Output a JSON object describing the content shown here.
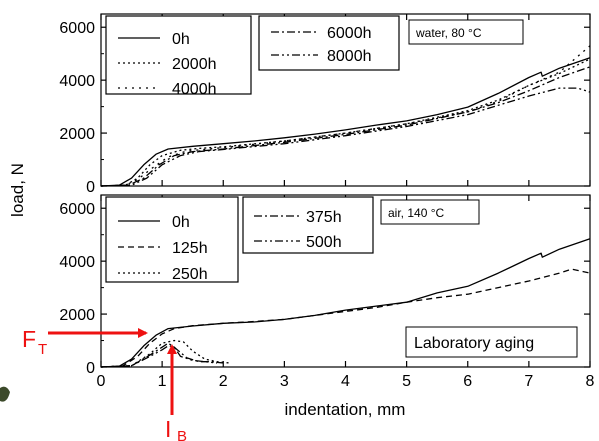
{
  "chart_data": [
    {
      "type": "line",
      "panel": "top",
      "xlim": [
        0,
        8
      ],
      "ylim": [
        0,
        6500
      ],
      "yticks": [
        0,
        2000,
        4000,
        6000
      ],
      "grid": false,
      "condition_label": "water, 80 °C",
      "legend_primary": [
        "0h",
        "2000h",
        "4000h"
      ],
      "legend_secondary": [
        "6000h",
        "8000h"
      ],
      "series": [
        {
          "name": "0h",
          "style": "solid",
          "x": [
            0,
            0.3,
            0.5,
            0.7,
            0.9,
            1.1,
            1.5,
            2,
            2.5,
            3,
            3.5,
            4,
            4.5,
            5,
            5.5,
            6,
            6.5,
            7,
            7.2,
            7.22,
            7.5,
            8
          ],
          "y": [
            0,
            30,
            300,
            800,
            1200,
            1400,
            1500,
            1600,
            1700,
            1820,
            1960,
            2120,
            2300,
            2460,
            2700,
            2980,
            3500,
            4100,
            4300,
            4150,
            4450,
            4850
          ]
        },
        {
          "name": "2000h",
          "style": "dot",
          "x": [
            0,
            0.4,
            0.6,
            0.8,
            1,
            1.3,
            1.6,
            2,
            3,
            4,
            5,
            6,
            6.5,
            7,
            7.5,
            8
          ],
          "y": [
            0,
            30,
            300,
            800,
            1150,
            1350,
            1420,
            1480,
            1700,
            2000,
            2350,
            2850,
            3250,
            3800,
            4250,
            4800
          ]
        },
        {
          "name": "4000h",
          "style": "dot-sparse",
          "x": [
            0,
            0.4,
            0.6,
            0.85,
            1.1,
            1.4,
            2,
            3,
            4,
            5,
            6,
            6.5,
            7,
            7.5,
            8
          ],
          "y": [
            0,
            30,
            250,
            700,
            1100,
            1320,
            1450,
            1700,
            2000,
            2350,
            2800,
            3200,
            3800,
            4300,
            5300
          ]
        },
        {
          "name": "6000h",
          "style": "dashdot",
          "x": [
            0,
            0.45,
            0.7,
            0.95,
            1.2,
            1.5,
            2,
            3,
            4,
            5,
            6,
            6.5,
            7,
            7.5,
            8
          ],
          "y": [
            0,
            30,
            300,
            800,
            1150,
            1300,
            1400,
            1650,
            1950,
            2300,
            2800,
            3150,
            3600,
            4100,
            4500
          ]
        },
        {
          "name": "8000h",
          "style": "dashdotdot",
          "x": [
            0,
            0.5,
            0.75,
            1,
            1.3,
            1.6,
            2,
            3,
            4,
            5,
            6,
            6.5,
            7,
            7.5,
            7.8,
            8
          ],
          "y": [
            0,
            30,
            300,
            800,
            1150,
            1300,
            1380,
            1600,
            1900,
            2250,
            2700,
            3050,
            3400,
            3700,
            3700,
            3550
          ]
        }
      ]
    },
    {
      "type": "line",
      "panel": "bottom",
      "xlim": [
        0,
        8
      ],
      "ylim": [
        0,
        6500
      ],
      "yticks": [
        0,
        2000,
        4000,
        6000
      ],
      "xticks": [
        0,
        1,
        2,
        3,
        4,
        5,
        6,
        7,
        8
      ],
      "grid": false,
      "condition_label": "air, 140 °C",
      "annotation": "Laboratory aging",
      "legend_primary": [
        "0h",
        "125h",
        "250h"
      ],
      "legend_secondary": [
        "375h",
        "500h"
      ],
      "series": [
        {
          "name": "0h",
          "style": "solid",
          "x": [
            0,
            0.3,
            0.5,
            0.7,
            0.9,
            1.1,
            1.5,
            2,
            2.5,
            3,
            3.5,
            4,
            4.5,
            5,
            5.5,
            6,
            6.5,
            7,
            7.2,
            7.22,
            7.5,
            8
          ],
          "y": [
            0,
            30,
            300,
            800,
            1200,
            1450,
            1550,
            1650,
            1700,
            1800,
            1950,
            2150,
            2300,
            2450,
            2800,
            3050,
            3550,
            4100,
            4300,
            4150,
            4450,
            4850
          ]
        },
        {
          "name": "125h",
          "style": "dash",
          "x": [
            0,
            0.35,
            0.6,
            0.8,
            1,
            1.2,
            1.5,
            2,
            2.5,
            3,
            3.5,
            4,
            4.5,
            5,
            5.5,
            6,
            6.5,
            7,
            7.5,
            7.7,
            8
          ],
          "y": [
            0,
            30,
            400,
            900,
            1250,
            1450,
            1560,
            1650,
            1720,
            1800,
            1950,
            2100,
            2250,
            2450,
            2620,
            2750,
            3000,
            3250,
            3550,
            3700,
            3550
          ]
        },
        {
          "name": "250h",
          "style": "dot",
          "x": [
            0,
            0.5,
            0.8,
            1,
            1.2,
            1.35,
            1.5,
            1.7,
            1.9,
            2.1
          ],
          "y": [
            0,
            50,
            500,
            900,
            1000,
            950,
            600,
            300,
            200,
            150
          ]
        },
        {
          "name": "375h",
          "style": "dashdot",
          "x": [
            0,
            0.5,
            0.8,
            1,
            1.1,
            1.2,
            1.4,
            1.6,
            1.8,
            2
          ],
          "y": [
            0,
            50,
            450,
            750,
            900,
            750,
            350,
            200,
            200,
            150
          ]
        },
        {
          "name": "500h",
          "style": "dashdotdot",
          "x": [
            0,
            0.5,
            0.8,
            1,
            1.1,
            1.2,
            1.3,
            1.5,
            1.7,
            1.9
          ],
          "y": [
            0,
            50,
            400,
            650,
            800,
            750,
            400,
            250,
            200,
            150
          ]
        }
      ]
    }
  ],
  "axes": {
    "xlabel": "indentation, mm",
    "ylabel": "load, N"
  },
  "markers": {
    "force_label": "F",
    "force_sub": "T",
    "indent_label": "I",
    "indent_sub": "B",
    "color": "#ee1111"
  }
}
